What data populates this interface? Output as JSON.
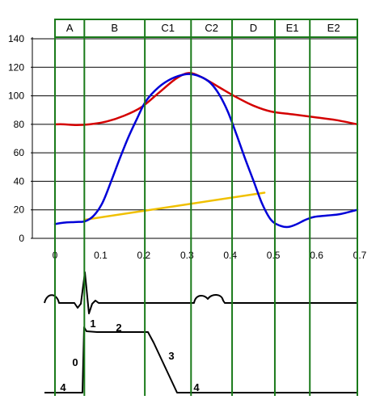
{
  "chart_data": {
    "type": "line",
    "title": "",
    "xlabel": "",
    "ylabel": "",
    "xlim": [
      0,
      0.7
    ],
    "ylim": [
      0,
      140
    ],
    "x_ticks": [
      "0",
      "0.1",
      "0.2",
      "0.3",
      "0.4",
      "0.5",
      "0.6",
      "0.7"
    ],
    "y_ticks": [
      "0",
      "20",
      "40",
      "60",
      "80",
      "100",
      "120",
      "140"
    ],
    "grid": "horizontal",
    "segments": [
      {
        "label": "A",
        "from": 0.0,
        "to": 0.068
      },
      {
        "label": "B",
        "from": 0.068,
        "to": 0.208
      },
      {
        "label": "C1",
        "from": 0.208,
        "to": 0.315
      },
      {
        "label": "C2",
        "from": 0.315,
        "to": 0.41
      },
      {
        "label": "D",
        "from": 0.41,
        "to": 0.509
      },
      {
        "label": "E1",
        "from": 0.509,
        "to": 0.59
      },
      {
        "label": "E2",
        "from": 0.59,
        "to": 0.7
      }
    ],
    "series": [
      {
        "color": "#d40000",
        "x": [
          0,
          0.02,
          0.05,
          0.08,
          0.12,
          0.16,
          0.2,
          0.24,
          0.28,
          0.31,
          0.34,
          0.38,
          0.42,
          0.46,
          0.5,
          0.55,
          0.6,
          0.65,
          0.7
        ],
        "y": [
          80,
          80,
          79.5,
          80,
          82,
          86,
          92,
          102,
          112,
          116,
          113,
          106,
          99,
          93,
          89,
          87,
          85,
          83,
          80
        ]
      },
      {
        "color": "#0000d8",
        "x": [
          0,
          0.02,
          0.05,
          0.07,
          0.09,
          0.11,
          0.13,
          0.15,
          0.17,
          0.19,
          0.21,
          0.24,
          0.27,
          0.3,
          0.32,
          0.34,
          0.36,
          0.38,
          0.4,
          0.42,
          0.44,
          0.46,
          0.48,
          0.5,
          0.52,
          0.54,
          0.56,
          0.58,
          0.6,
          0.63,
          0.66,
          0.7
        ],
        "y": [
          10,
          11,
          11.5,
          12,
          16,
          25,
          40,
          56,
          71,
          84,
          96,
          106,
          112,
          115,
          115,
          113,
          109,
          101,
          89,
          73,
          56,
          40,
          24,
          13,
          9,
          8,
          10,
          13,
          15,
          16,
          17,
          20
        ]
      },
      {
        "color": "#f0c000",
        "x": [
          0.068,
          0.485
        ],
        "y": [
          13,
          32
        ]
      }
    ]
  },
  "ecg": {
    "phase_labels": [
      "0",
      "1",
      "2",
      "3",
      "4",
      "4"
    ]
  }
}
